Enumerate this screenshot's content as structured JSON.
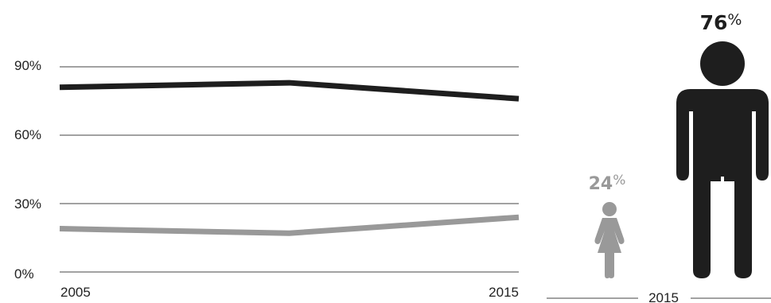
{
  "chart_data": {
    "type": "line",
    "x": [
      2005,
      2010,
      2015
    ],
    "x_tick_labels": [
      "2005",
      "2015"
    ],
    "y_tick_labels": [
      "0%",
      "30%",
      "60%",
      "90%"
    ],
    "ylim": [
      0,
      90
    ],
    "grid": true,
    "series": [
      {
        "key": "men",
        "values": [
          81,
          83,
          76
        ]
      },
      {
        "key": "women",
        "values": [
          19,
          17,
          24
        ]
      }
    ],
    "colors": {
      "men": "#1e1e1e",
      "women": "#999999",
      "grid": "#444444"
    }
  },
  "infographic": {
    "year_label": "2015",
    "men": {
      "value": "76",
      "symbol": "%",
      "icon": "man-icon"
    },
    "women": {
      "value": "24",
      "symbol": "%",
      "icon": "woman-icon"
    }
  }
}
